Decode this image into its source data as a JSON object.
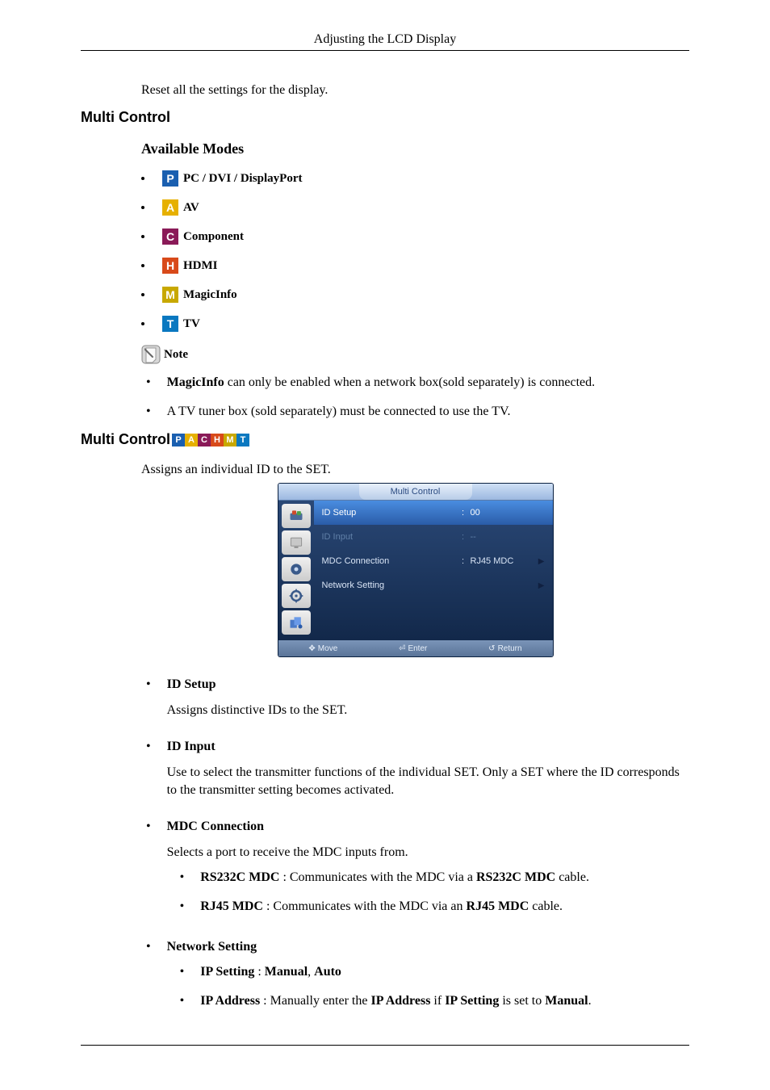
{
  "header": {
    "title": "Adjusting the LCD Display"
  },
  "intro": "Reset all the settings for the display.",
  "sections": {
    "multi_control_1": "Multi Control",
    "available_modes": "Available Modes",
    "multi_control_2": "Multi Control",
    "assigns_text": "Assigns an individual ID to the SET."
  },
  "modes": [
    {
      "letter": "P",
      "bg": "#1a5fb0",
      "label": "PC / DVI / DisplayPort"
    },
    {
      "letter": "A",
      "bg": "#e6b000",
      "label": "AV"
    },
    {
      "letter": "C",
      "bg": "#8a1a58",
      "label": "Component"
    },
    {
      "letter": "H",
      "bg": "#d84a1a",
      "label": "HDMI"
    },
    {
      "letter": "M",
      "bg": "#c8a800",
      "label": "MagicInfo"
    },
    {
      "letter": "T",
      "bg": "#0a78c0",
      "label": "TV"
    }
  ],
  "note": {
    "label": "Note",
    "items": [
      {
        "pre": "",
        "bold": "MagicInfo",
        "post": " can only be enabled when a network box(sold separately) is connected."
      },
      {
        "pre": "A TV tuner box (sold separately) must be connected to use the TV.",
        "bold": "",
        "post": ""
      }
    ]
  },
  "osd": {
    "title": "Multi Control",
    "rows": [
      {
        "label": "ID Setup",
        "colon": ":",
        "val": "00",
        "arrow": "",
        "sel": true
      },
      {
        "label": "ID Input",
        "colon": ":",
        "val": "--",
        "arrow": "",
        "dim": true
      },
      {
        "label": "MDC Connection",
        "colon": ":",
        "val": "RJ45 MDC",
        "arrow": "▶"
      },
      {
        "label": "Network Setting",
        "colon": "",
        "val": "",
        "arrow": "▶"
      }
    ],
    "footer": {
      "move": "Move",
      "enter": "Enter",
      "ret": "Return"
    }
  },
  "details": {
    "id_setup": {
      "title": "ID Setup",
      "desc": "Assigns distinctive IDs to the SET."
    },
    "id_input": {
      "title": "ID Input",
      "desc": "Use to select the transmitter functions of the individual SET. Only a SET where the ID corresponds to the transmitter setting becomes activated."
    },
    "mdc": {
      "title": "MDC Connection",
      "desc": "Selects a port to receive the MDC inputs from.",
      "sub": [
        {
          "b1": "RS232C MDC",
          "mid": " : Communicates with the MDC via a ",
          "b2": "RS232C MDC",
          "end": " cable."
        },
        {
          "b1": "RJ45 MDC",
          "mid": " : Communicates with the MDC via an ",
          "b2": "RJ45 MDC",
          "end": " cable."
        }
      ]
    },
    "net": {
      "title": "Network Setting",
      "sub": [
        {
          "b1": "IP Setting",
          "mid": " : ",
          "b2": "Manual",
          "sep": ", ",
          "b3": "Auto",
          "end": ""
        },
        {
          "b1": "IP Address",
          "mid": " : Manually enter the ",
          "b2": "IP Address",
          "sep": " if ",
          "b3": "IP Setting",
          "mid2": " is set to ",
          "b4": "Manual",
          "end": "."
        }
      ]
    }
  }
}
